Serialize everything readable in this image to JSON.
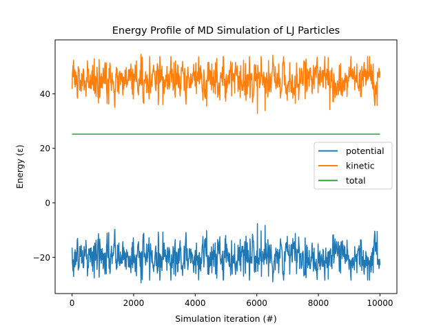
{
  "chart_data": {
    "type": "line",
    "title": "Energy Profile of MD Simulation of LJ Particles",
    "xlabel": "Simulation iteration (#)",
    "ylabel": "Energy (ε)",
    "xlim": [
      -550,
      10550
    ],
    "ylim": [
      -33.3,
      59.8
    ],
    "xticks": [
      0,
      2000,
      4000,
      6000,
      8000,
      10000
    ],
    "xtick_labels": [
      "0",
      "2000",
      "4000",
      "6000",
      "8000",
      "10000"
    ],
    "yticks": [
      -20,
      0,
      20,
      40
    ],
    "ytick_labels": [
      "−20",
      "0",
      "20",
      "40"
    ],
    "grid": false,
    "legend_position": "center-right",
    "x_range": [
      0,
      10000
    ],
    "series": [
      {
        "name": "potential",
        "color": "#1f77b4",
        "mean": -19.7,
        "min": -29.4,
        "max": -7.6,
        "spread": 3.9,
        "extremes": [
          {
            "x": 2240,
            "y": -29.4
          },
          {
            "x": 6020,
            "y": -7.6
          },
          {
            "x": 6270,
            "y": -8.3
          },
          {
            "x": 6520,
            "y": -29.0
          },
          {
            "x": 9910,
            "y": -10.5
          },
          {
            "x": 6140,
            "y": -10.3
          }
        ]
      },
      {
        "name": "kinetic",
        "color": "#ff7f0e",
        "mean": 45.0,
        "min": 32.8,
        "max": 54.5,
        "spread": 3.9,
        "extremes": [
          {
            "x": 2240,
            "y": 54.5
          },
          {
            "x": 6020,
            "y": 32.8
          },
          {
            "x": 6270,
            "y": 33.8
          },
          {
            "x": 6520,
            "y": 54.2
          },
          {
            "x": 9910,
            "y": 35.7
          },
          {
            "x": 8370,
            "y": 34.2
          }
        ]
      },
      {
        "name": "total",
        "color": "#2ca02c",
        "values_constant": 25.2
      }
    ]
  }
}
